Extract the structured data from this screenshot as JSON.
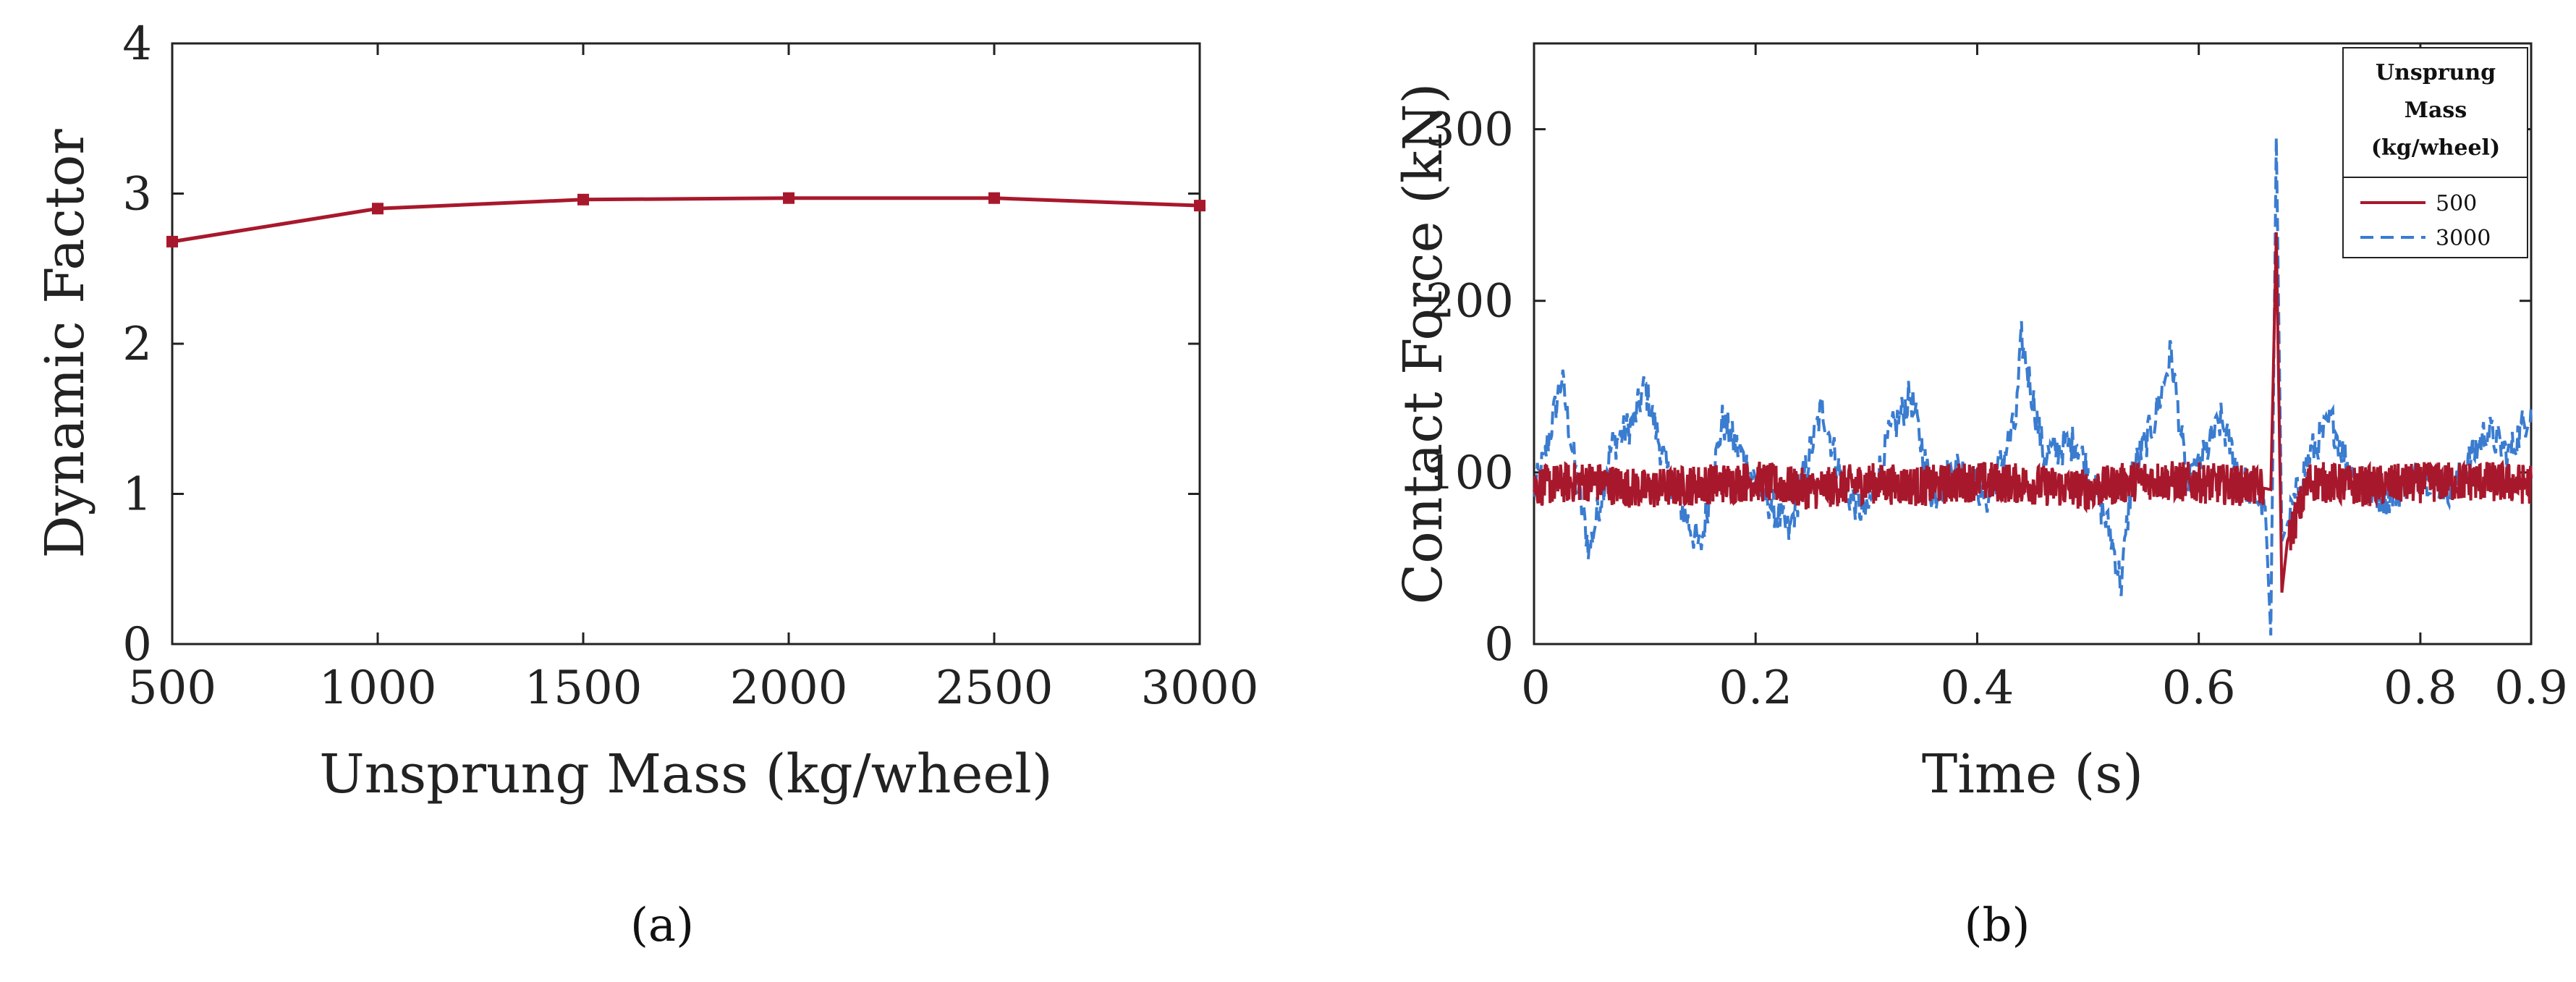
{
  "chart_data": [
    {
      "type": "line",
      "panel_caption": "(a)",
      "xlabel": "Unsprung Mass (kg/wheel)",
      "ylabel": "Dynamic Factor",
      "xlim": [
        500,
        3000
      ],
      "ylim": [
        0,
        4
      ],
      "x_ticks": [
        "500",
        "1000",
        "1500",
        "2000",
        "2500",
        "3000"
      ],
      "y_ticks": [
        "0",
        "1",
        "2",
        "3",
        "4"
      ],
      "grid": false,
      "series": [
        {
          "name": "Dynamic Factor",
          "color": "#a8182c",
          "x": [
            500,
            1000,
            1500,
            2000,
            2500,
            3000
          ],
          "values": [
            2.68,
            2.9,
            2.96,
            2.97,
            2.97,
            2.92
          ]
        }
      ]
    },
    {
      "type": "line",
      "panel_caption": "(b)",
      "xlabel": "Time (s)",
      "ylabel": "Contact Force (kN)",
      "xlim": [
        0,
        0.9
      ],
      "ylim": [
        0,
        350
      ],
      "x_ticks": [
        "0",
        "0.2",
        "0.4",
        "0.6",
        "0.8",
        "0.9"
      ],
      "y_ticks": [
        "0",
        "100",
        "200",
        "300"
      ],
      "legend_title": [
        "Unsprung",
        "Mass",
        "(kg/wheel)"
      ],
      "legend_position": "top-right",
      "series": [
        {
          "name": "500",
          "color": "#a8182c",
          "style": "solid",
          "approx_points": [
            [
              0,
              92
            ],
            [
              0.05,
              95
            ],
            [
              0.1,
              90
            ],
            [
              0.15,
              93
            ],
            [
              0.2,
              95
            ],
            [
              0.25,
              90
            ],
            [
              0.3,
              94
            ],
            [
              0.35,
              92
            ],
            [
              0.4,
              95
            ],
            [
              0.45,
              93
            ],
            [
              0.5,
              90
            ],
            [
              0.55,
              96
            ],
            [
              0.6,
              94
            ],
            [
              0.65,
              92
            ],
            [
              0.665,
              90
            ],
            [
              0.67,
              240
            ],
            [
              0.675,
              30
            ],
            [
              0.68,
              60
            ],
            [
              0.7,
              95
            ],
            [
              0.75,
              92
            ],
            [
              0.8,
              94
            ],
            [
              0.85,
              95
            ],
            [
              0.9,
              93
            ]
          ],
          "band": 20
        },
        {
          "name": "3000",
          "color": "#3a7cd0",
          "style": "dashed",
          "approx_points": [
            [
              0,
              88
            ],
            [
              0.01,
              110
            ],
            [
              0.025,
              155
            ],
            [
              0.04,
              90
            ],
            [
              0.05,
              55
            ],
            [
              0.07,
              115
            ],
            [
              0.09,
              130
            ],
            [
              0.1,
              150
            ],
            [
              0.12,
              100
            ],
            [
              0.15,
              55
            ],
            [
              0.17,
              130
            ],
            [
              0.2,
              95
            ],
            [
              0.23,
              65
            ],
            [
              0.26,
              138
            ],
            [
              0.28,
              90
            ],
            [
              0.3,
              75
            ],
            [
              0.32,
              120
            ],
            [
              0.34,
              145
            ],
            [
              0.36,
              85
            ],
            [
              0.38,
              105
            ],
            [
              0.41,
              85
            ],
            [
              0.435,
              130
            ],
            [
              0.44,
              178
            ],
            [
              0.46,
              110
            ],
            [
              0.49,
              118
            ],
            [
              0.52,
              65
            ],
            [
              0.53,
              35
            ],
            [
              0.54,
              100
            ],
            [
              0.56,
              130
            ],
            [
              0.575,
              170
            ],
            [
              0.59,
              90
            ],
            [
              0.62,
              130
            ],
            [
              0.64,
              95
            ],
            [
              0.66,
              80
            ],
            [
              0.665,
              5
            ],
            [
              0.67,
              295
            ],
            [
              0.675,
              60
            ],
            [
              0.68,
              70
            ],
            [
              0.7,
              110
            ],
            [
              0.72,
              130
            ],
            [
              0.74,
              95
            ],
            [
              0.77,
              85
            ],
            [
              0.8,
              100
            ],
            [
              0.83,
              90
            ],
            [
              0.86,
              125
            ],
            [
              0.88,
              110
            ],
            [
              0.9,
              138
            ]
          ],
          "band": 22
        }
      ]
    }
  ]
}
